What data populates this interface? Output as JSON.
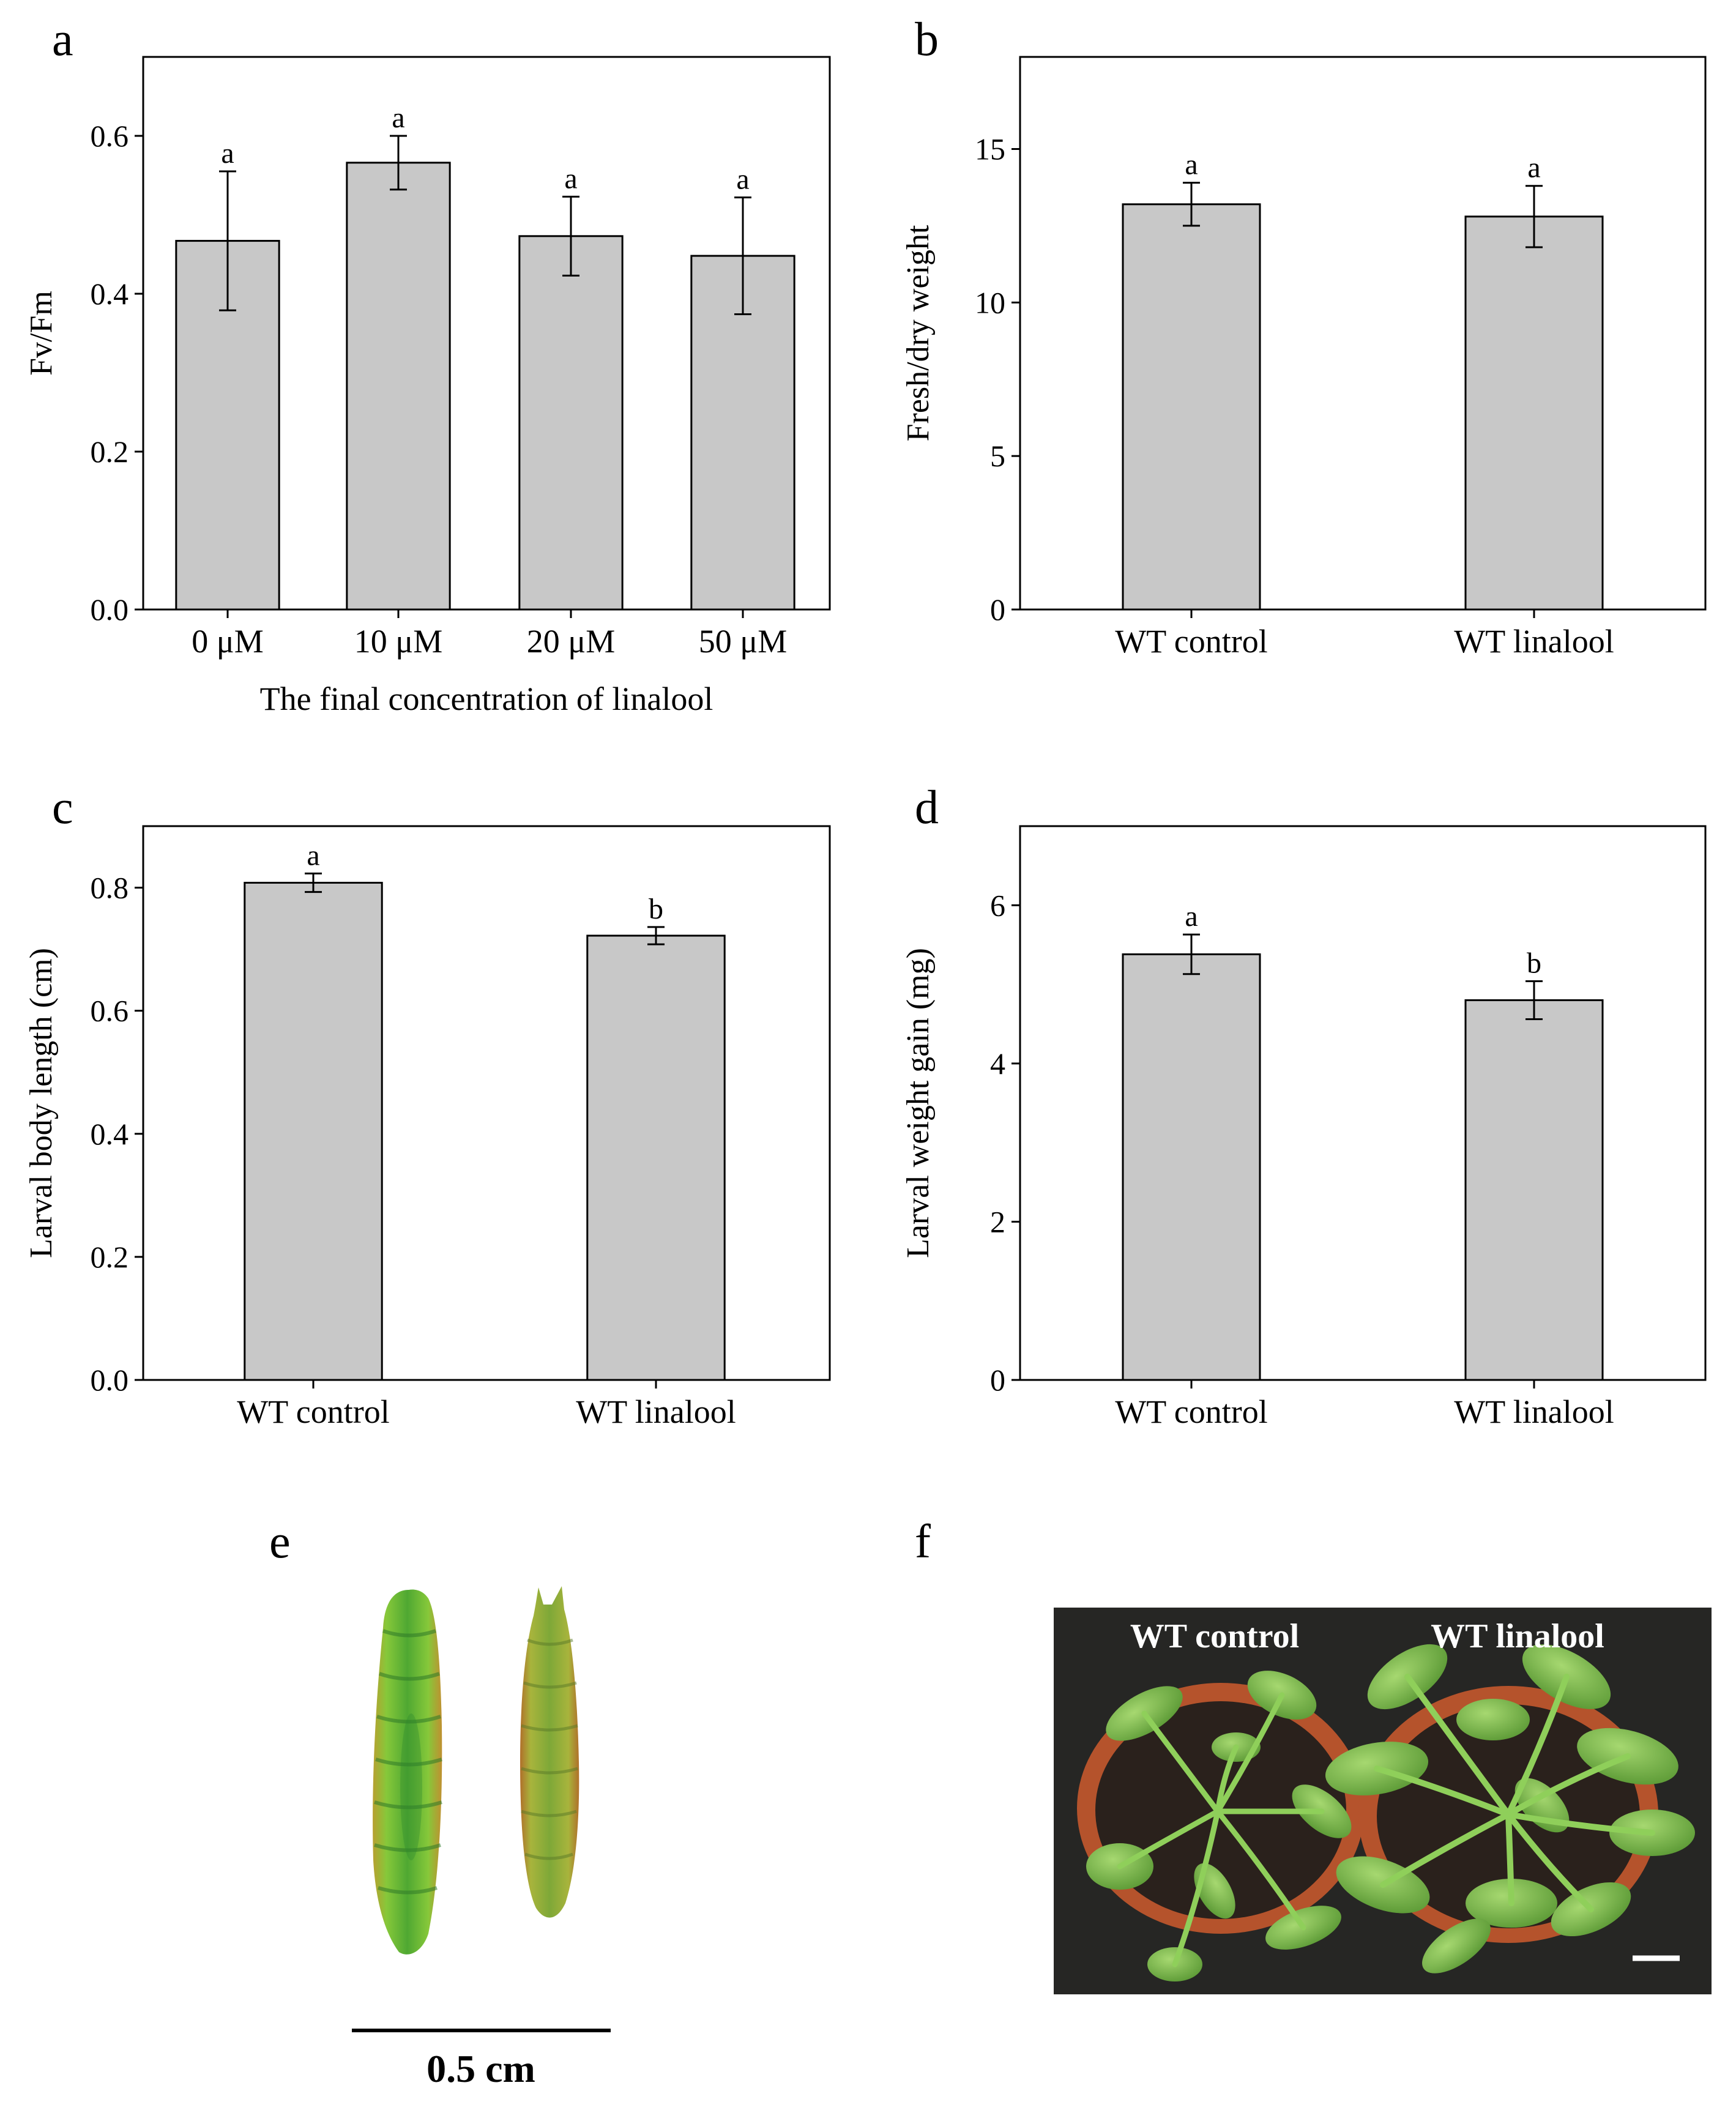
{
  "colors": {
    "bar_fill": "#c8c8c8",
    "bar_stroke": "#000000",
    "photo_bg": "#262624",
    "pot": "#b5532c",
    "soil": "#2a211c",
    "leaf": "#7fbf4a",
    "leaf_dark": "#5a9a36",
    "larva_bright": "#7cc832",
    "larva_dull": "#a6b23a",
    "larva_edge": "#b0762a"
  },
  "panels": {
    "a": {
      "letter": "a"
    },
    "b": {
      "letter": "b"
    },
    "c": {
      "letter": "c"
    },
    "d": {
      "letter": "d"
    },
    "e": {
      "letter": "e",
      "scale_label": "0.5 cm"
    },
    "f": {
      "letter": "f",
      "label_left": "WT control",
      "label_right": "WT linalool"
    }
  },
  "chart_data": [
    {
      "id": "a",
      "type": "bar",
      "categories": [
        "0 μM",
        "10 μM",
        "20 μM",
        "50 μM"
      ],
      "values": [
        0.467,
        0.566,
        0.473,
        0.448
      ],
      "errors": [
        0.088,
        0.034,
        0.05,
        0.074
      ],
      "significance": [
        "a",
        "a",
        "a",
        "a"
      ],
      "xlabel": "The final concentration of linalool",
      "ylabel": "Fv/Fm",
      "ylim": [
        0,
        0.7
      ],
      "yticks": [
        0.0,
        0.2,
        0.4,
        0.6
      ],
      "ytick_labels": [
        "0.0",
        "0.2",
        "0.4",
        "0.6"
      ]
    },
    {
      "id": "b",
      "type": "bar",
      "categories": [
        "WT control",
        "WT linalool"
      ],
      "values": [
        13.2,
        12.8
      ],
      "errors": [
        0.7,
        1.0
      ],
      "significance": [
        "a",
        "a"
      ],
      "xlabel": "",
      "ylabel": "Fresh/dry weight",
      "ylim": [
        0,
        18
      ],
      "yticks": [
        0,
        5,
        10,
        15
      ],
      "ytick_labels": [
        "0",
        "5",
        "10",
        "15"
      ]
    },
    {
      "id": "c",
      "type": "bar",
      "categories": [
        "WT control",
        "WT linalool"
      ],
      "values": [
        0.808,
        0.722
      ],
      "errors": [
        0.015,
        0.014
      ],
      "significance": [
        "a",
        "b"
      ],
      "xlabel": "",
      "ylabel": "Larval body length (cm)",
      "ylim": [
        0,
        0.9
      ],
      "yticks": [
        0.0,
        0.2,
        0.4,
        0.6,
        0.8
      ],
      "ytick_labels": [
        "0.0",
        "0.2",
        "0.4",
        "0.6",
        "0.8"
      ]
    },
    {
      "id": "d",
      "type": "bar",
      "categories": [
        "WT control",
        "WT linalool"
      ],
      "values": [
        5.38,
        4.8
      ],
      "errors": [
        0.25,
        0.24
      ],
      "significance": [
        "a",
        "b"
      ],
      "xlabel": "",
      "ylabel": "Larval weight gain (mg)",
      "ylim": [
        0,
        7
      ],
      "yticks": [
        0,
        2,
        4,
        6
      ],
      "ytick_labels": [
        "0",
        "2",
        "4",
        "6"
      ]
    }
  ]
}
